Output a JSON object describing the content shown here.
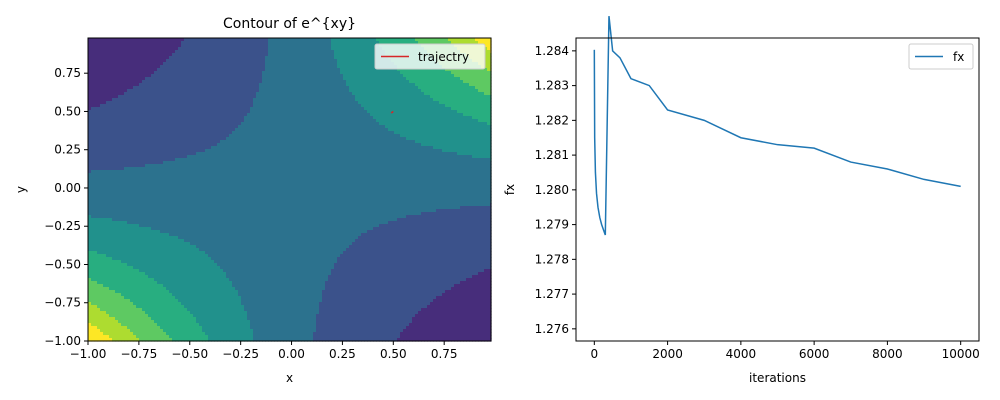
{
  "chart_data": [
    {
      "type": "contour",
      "title": "Contour of e^{xy}",
      "xlabel": "x",
      "ylabel": "y",
      "function": "exp(x*y)",
      "xlim": [
        -1.0,
        0.98
      ],
      "ylim": [
        -1.0,
        0.98
      ],
      "x_ticks": [
        -1.0,
        -0.75,
        -0.5,
        -0.25,
        0.0,
        0.25,
        0.5,
        0.75
      ],
      "x_tick_labels": [
        "−1.00",
        "−0.75",
        "−0.50",
        "−0.25",
        "0.00",
        "0.25",
        "0.50",
        "0.75"
      ],
      "y_ticks": [
        -1.0,
        -0.75,
        -0.5,
        -0.25,
        0.0,
        0.25,
        0.5,
        0.75
      ],
      "y_tick_labels": [
        "−1.00",
        "−0.75",
        "−0.50",
        "−0.25",
        "0.00",
        "0.25",
        "0.50",
        "0.75"
      ],
      "levels": [
        0.3,
        0.6,
        0.9,
        1.2,
        1.5,
        1.8,
        2.1,
        2.4,
        2.7
      ],
      "colormap": [
        "#440154",
        "#472d7b",
        "#3b528b",
        "#2c728e",
        "#21918c",
        "#28ae80",
        "#5ec962",
        "#addc30",
        "#fde725"
      ],
      "trajectory": {
        "name": "trajectry",
        "color": "#d62728",
        "x": [
          0.5,
          0.49
        ],
        "y": [
          0.5,
          0.49
        ]
      },
      "legend": {
        "position": "upper right",
        "entries": [
          "trajectry"
        ]
      }
    },
    {
      "type": "line",
      "xlabel": "iterations",
      "ylabel": "fx",
      "xlim": [
        -500,
        10500
      ],
      "ylim": [
        1.27565,
        1.28437
      ],
      "x_ticks": [
        0,
        2000,
        4000,
        6000,
        8000,
        10000
      ],
      "x_tick_labels": [
        "0",
        "2000",
        "4000",
        "6000",
        "8000",
        "10000"
      ],
      "y_ticks": [
        1.276,
        1.277,
        1.278,
        1.279,
        1.28,
        1.281,
        1.282,
        1.283,
        1.284
      ],
      "y_tick_labels": [
        "1.276",
        "1.277",
        "1.278",
        "1.279",
        "1.280",
        "1.281",
        "1.282",
        "1.283",
        "1.284"
      ],
      "series": [
        {
          "name": "fx",
          "color": "#1f77b4",
          "x": [
            0,
            10,
            30,
            60,
            100,
            150,
            200,
            300,
            400,
            500,
            700,
            1000,
            1500,
            2000,
            3000,
            4000,
            5000,
            6000,
            7000,
            8000,
            9000,
            10000
          ],
          "y": [
            1.28403,
            1.2815,
            1.2805,
            1.2799,
            1.2795,
            1.2792,
            1.279,
            1.2787,
            1.285,
            1.284,
            1.2838,
            1.2832,
            1.283,
            1.2823,
            1.282,
            1.2815,
            1.2813,
            1.2812,
            1.2808,
            1.2806,
            1.2803,
            1.2801
          ]
        }
      ],
      "legend": {
        "position": "upper right",
        "entries": [
          "fx"
        ]
      }
    }
  ]
}
